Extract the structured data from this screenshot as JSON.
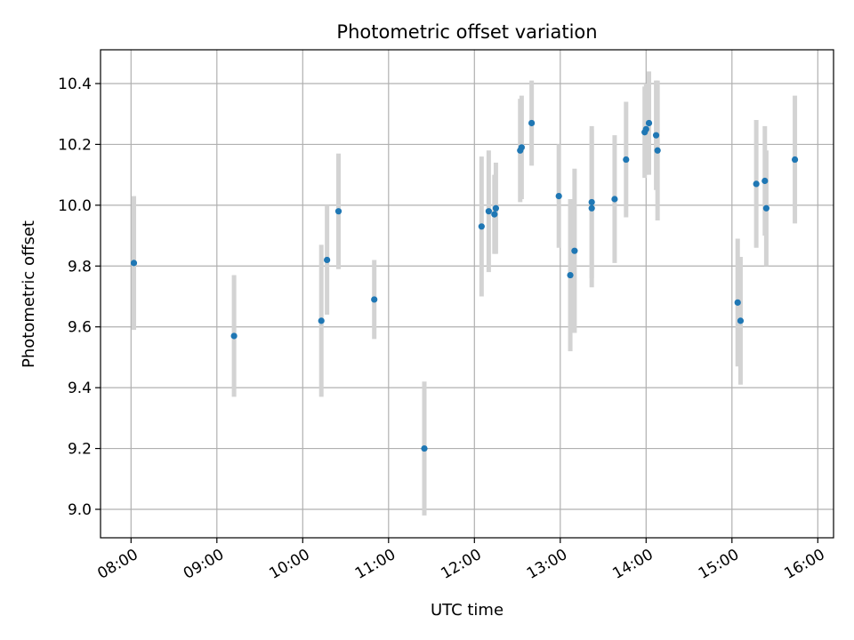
{
  "chart_data": {
    "type": "scatter",
    "title": "Photometric offset variation",
    "xlabel": "UTC time",
    "ylabel": "Photometric offset",
    "x_tick_labels": [
      "08:00",
      "09:00",
      "10:00",
      "11:00",
      "12:00",
      "13:00",
      "14:00",
      "15:00",
      "16:00"
    ],
    "y_tick_labels": [
      "9.0",
      "9.2",
      "9.4",
      "9.6",
      "9.8",
      "10.0",
      "10.2",
      "10.4"
    ],
    "grid": true,
    "point_color": "#1f77b4",
    "errorbar_color": "#d3d3d3",
    "points": [
      {
        "x": "08:02",
        "y": 9.81,
        "err": 0.22
      },
      {
        "x": "09:12",
        "y": 9.57,
        "err": 0.2
      },
      {
        "x": "10:13",
        "y": 9.62,
        "err": 0.25
      },
      {
        "x": "10:17",
        "y": 9.82,
        "err": 0.18
      },
      {
        "x": "10:25",
        "y": 9.98,
        "err": 0.19
      },
      {
        "x": "10:50",
        "y": 9.69,
        "err": 0.13
      },
      {
        "x": "11:25",
        "y": 9.2,
        "err": 0.22
      },
      {
        "x": "12:05",
        "y": 9.93,
        "err": 0.23
      },
      {
        "x": "12:10",
        "y": 9.98,
        "err": 0.2
      },
      {
        "x": "12:14",
        "y": 9.97,
        "err": 0.13
      },
      {
        "x": "12:15",
        "y": 9.99,
        "err": 0.15
      },
      {
        "x": "12:32",
        "y": 10.18,
        "err": 0.17
      },
      {
        "x": "12:33",
        "y": 10.19,
        "err": 0.17
      },
      {
        "x": "12:40",
        "y": 10.27,
        "err": 0.14
      },
      {
        "x": "12:59",
        "y": 10.03,
        "err": 0.17
      },
      {
        "x": "13:07",
        "y": 9.77,
        "err": 0.25
      },
      {
        "x": "13:10",
        "y": 9.85,
        "err": 0.27
      },
      {
        "x": "13:22",
        "y": 10.01,
        "err": 0.25
      },
      {
        "x": "13:22",
        "y": 9.99,
        "err": 0.26
      },
      {
        "x": "13:38",
        "y": 10.02,
        "err": 0.21
      },
      {
        "x": "13:46",
        "y": 10.15,
        "err": 0.19
      },
      {
        "x": "13:59",
        "y": 10.24,
        "err": 0.15
      },
      {
        "x": "14:00",
        "y": 10.25,
        "err": 0.15
      },
      {
        "x": "14:02",
        "y": 10.27,
        "err": 0.17
      },
      {
        "x": "14:07",
        "y": 10.23,
        "err": 0.18
      },
      {
        "x": "14:08",
        "y": 10.18,
        "err": 0.23
      },
      {
        "x": "15:04",
        "y": 9.68,
        "err": 0.21
      },
      {
        "x": "15:06",
        "y": 9.62,
        "err": 0.21
      },
      {
        "x": "15:17",
        "y": 10.07,
        "err": 0.21
      },
      {
        "x": "15:23",
        "y": 10.08,
        "err": 0.18
      },
      {
        "x": "15:24",
        "y": 9.99,
        "err": 0.19
      },
      {
        "x": "15:44",
        "y": 10.15,
        "err": 0.21
      }
    ]
  }
}
